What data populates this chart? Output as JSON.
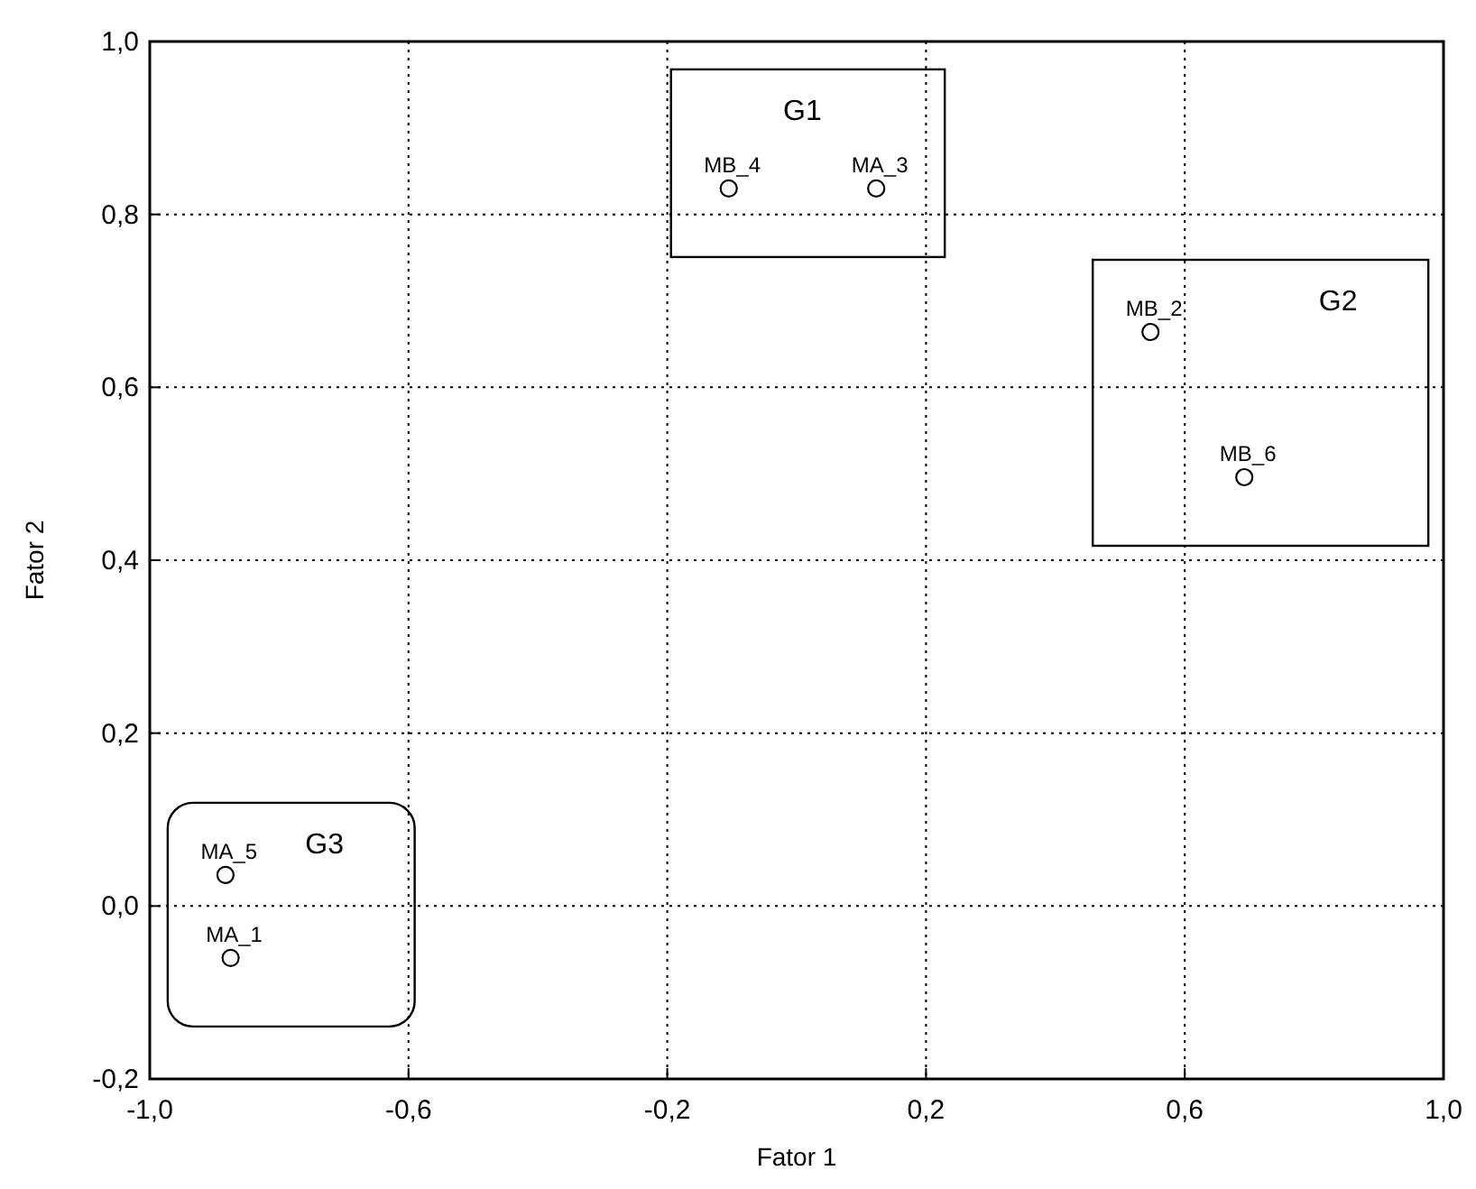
{
  "chart_data": {
    "type": "scatter",
    "xlabel": "Fator 1",
    "ylabel": "Fator 2",
    "x": [
      -0.105,
      0.123,
      0.547,
      0.692,
      -0.883,
      -0.875
    ],
    "values": [
      0.83,
      0.83,
      0.664,
      0.496,
      0.036,
      -0.06
    ],
    "color": "#000000",
    "marker": "circle",
    "grid": true,
    "xlim": [
      -1,
      1
    ],
    "ylim": [
      -0.2,
      1
    ],
    "xticks": [
      {
        "value": -1,
        "label": "-1,0"
      },
      {
        "value": -0.6,
        "label": "-0,6"
      },
      {
        "value": -0.2,
        "label": "-0,2"
      },
      {
        "value": 0.2,
        "label": "0,2"
      },
      {
        "value": 0.6,
        "label": "0,6"
      },
      {
        "value": 1,
        "label": "1,0"
      }
    ],
    "yticks": [
      {
        "value": -0.2,
        "label": "-0,2"
      },
      {
        "value": 0,
        "label": "0,0"
      },
      {
        "value": 0.2,
        "label": "0,2"
      },
      {
        "value": 0.4,
        "label": "0,4"
      },
      {
        "value": 0.6,
        "label": "0,6"
      },
      {
        "value": 0.8,
        "label": "0,8"
      },
      {
        "value": 1,
        "label": "1,0"
      }
    ],
    "annotations": [
      {
        "text": "MB_4",
        "x": -0.105,
        "y": 0.83
      },
      {
        "text": "MA_3",
        "x": 0.123,
        "y": 0.83
      },
      {
        "text": "MB_2",
        "x": 0.547,
        "y": 0.664
      },
      {
        "text": "MB_6",
        "x": 0.692,
        "y": 0.496
      },
      {
        "text": "MA_5",
        "x": -0.883,
        "y": 0.036
      },
      {
        "text": "MA_1",
        "x": -0.875,
        "y": -0.06
      },
      "G1",
      "G2",
      "G3"
    ]
  }
}
